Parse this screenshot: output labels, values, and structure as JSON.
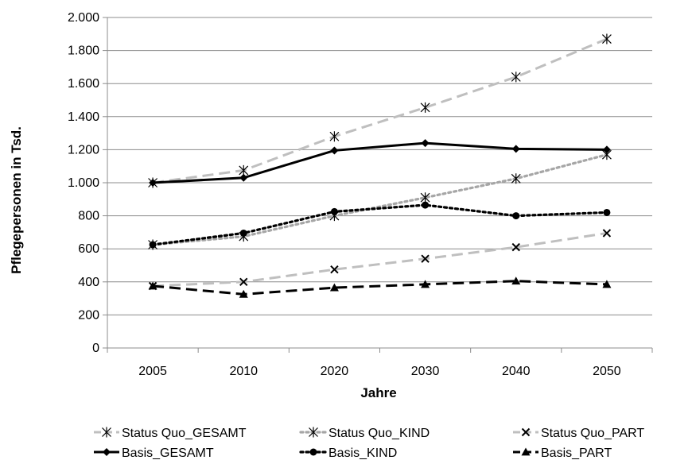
{
  "chart_data": {
    "type": "line",
    "title": "",
    "xlabel": "Jahre",
    "ylabel": "Pflegepersonen in Tsd.",
    "categories": [
      "2005",
      "2010",
      "2020",
      "2030",
      "2040",
      "2050"
    ],
    "ylim": [
      0,
      2000
    ],
    "yticks": [
      0,
      200,
      400,
      600,
      800,
      1000,
      1200,
      1400,
      1600,
      1800,
      2000
    ],
    "ytick_labels": [
      "0",
      "200",
      "400",
      "600",
      "800",
      "1.000",
      "1.200",
      "1.400",
      "1.600",
      "1.800",
      "2.000"
    ],
    "grid": "horizontal",
    "legend_position": "bottom",
    "series": [
      {
        "name": "Status Quo_GESAMT",
        "values": [
          1000,
          1075,
          1280,
          1455,
          1640,
          1870
        ],
        "color": "#BFBFBF",
        "dash": "dashed",
        "marker": "asterisk"
      },
      {
        "name": "Status Quo_KIND",
        "values": [
          625,
          675,
          800,
          910,
          1025,
          1170
        ],
        "color": "#A6A6A6",
        "dash": "dotted",
        "marker": "asterisk"
      },
      {
        "name": "Status Quo_PART",
        "values": [
          375,
          400,
          475,
          540,
          610,
          695
        ],
        "color": "#BFBFBF",
        "dash": "dashed",
        "marker": "x"
      },
      {
        "name": "Basis_GESAMT",
        "values": [
          1000,
          1030,
          1195,
          1240,
          1205,
          1200
        ],
        "color": "#000000",
        "dash": "solid",
        "marker": "diamond"
      },
      {
        "name": "Basis_KIND",
        "values": [
          625,
          695,
          825,
          865,
          800,
          820
        ],
        "color": "#000000",
        "dash": "dotted",
        "marker": "circle"
      },
      {
        "name": "Basis_PART",
        "values": [
          375,
          325,
          365,
          385,
          405,
          385
        ],
        "color": "#000000",
        "dash": "dashed",
        "marker": "triangle"
      }
    ]
  }
}
